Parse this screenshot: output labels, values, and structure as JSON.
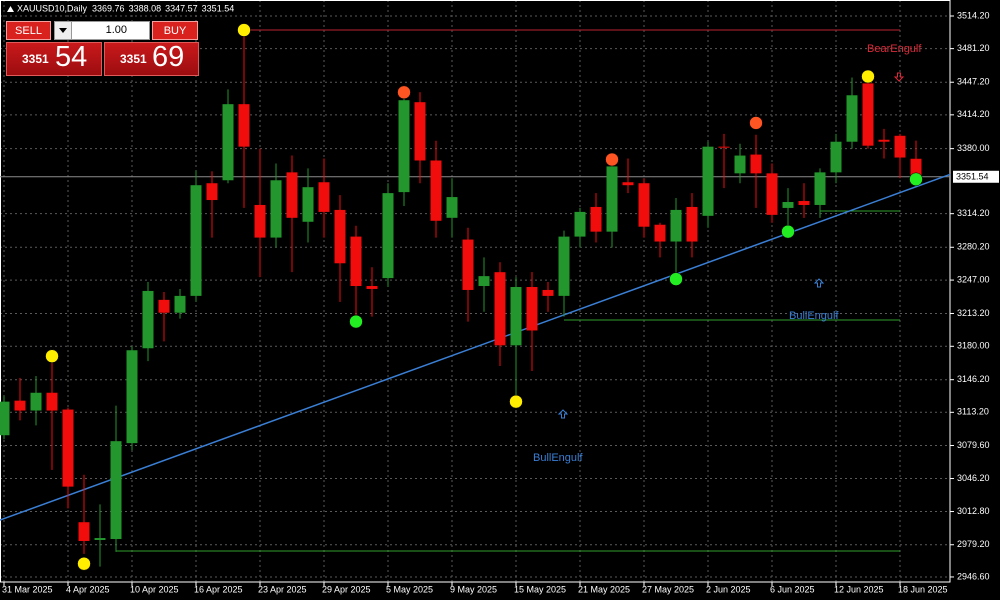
{
  "chart_data": {
    "type": "candlestick",
    "title": "XAUUSD10,Daily",
    "categories": [
      "31 Mar 2025",
      null,
      null,
      null,
      "4 Apr 2025",
      null,
      null,
      null,
      "10 Apr 2025",
      null,
      null,
      null,
      "16 Apr 2025",
      null,
      null,
      null,
      "23 Apr 2025",
      null,
      null,
      null,
      "29 Apr 2025",
      null,
      null,
      null,
      "5 May 2025",
      null,
      null,
      null,
      "9 May 2025",
      null,
      null,
      null,
      "15 May 2025",
      null,
      null,
      null,
      "21 May 2025",
      null,
      null,
      null,
      "27 May 2025",
      null,
      null,
      null,
      "2 Jun 2025",
      null,
      null,
      null,
      "6 Jun 2025",
      null,
      null,
      null,
      "12 Jun 2025",
      null,
      null,
      null,
      "18 Jun 2025",
      null
    ],
    "open": [
      3090,
      3125,
      3115,
      3133,
      3116,
      3002,
      2984,
      2985,
      3082,
      3178,
      3227,
      3214,
      3231,
      3345,
      3348,
      3425,
      3323,
      3290,
      3356,
      3306,
      3346,
      3318,
      3291,
      3241,
      3249,
      3336,
      3427,
      3368,
      3310,
      3288,
      3241,
      3255,
      3181,
      3240,
      3237,
      3231,
      3291,
      3321,
      3296,
      3346,
      3345,
      3303,
      3286,
      3321,
      3312,
      3382,
      3355,
      3374,
      3355,
      3320,
      3327,
      3323,
      3356,
      3387,
      3446,
      3389,
      3393,
      3369.76
    ],
    "high": [
      3130,
      3148,
      3150,
      3163,
      3118,
      3050,
      3020,
      3120,
      3180,
      3245,
      3235,
      3238,
      3358,
      3357,
      3440,
      3500,
      3380,
      3365,
      3373,
      3360,
      3370,
      3333,
      3302,
      3260,
      3345,
      3440,
      3437,
      3388,
      3350,
      3300,
      3270,
      3265,
      3250,
      3255,
      3245,
      3297,
      3320,
      3335,
      3372,
      3370,
      3350,
      3305,
      3330,
      3335,
      3387,
      3395,
      3385,
      3394,
      3365,
      3340,
      3345,
      3360,
      3395,
      3452,
      3453,
      3400,
      3395,
      3388.08
    ],
    "low": [
      3086,
      3105,
      3100,
      3055,
      3016,
      2970,
      2957,
      2972,
      3075,
      3165,
      3185,
      3208,
      3225,
      3290,
      3345,
      3320,
      3250,
      3280,
      3255,
      3285,
      3290,
      3225,
      3205,
      3210,
      3240,
      3322,
      3345,
      3290,
      3290,
      3205,
      3215,
      3160,
      3120,
      3155,
      3215,
      3210,
      3280,
      3285,
      3280,
      3335,
      3290,
      3270,
      3250,
      3270,
      3300,
      3340,
      3345,
      3320,
      3305,
      3300,
      3310,
      3310,
      3345,
      3380,
      3380,
      3370,
      3350,
      3347.57
    ],
    "close": [
      3124,
      3115,
      3133,
      3115,
      3038,
      2983,
      2986,
      3084,
      3176,
      3236,
      3214,
      3231,
      3343,
      3328,
      3425,
      3382,
      3290,
      3348,
      3310,
      3341,
      3316,
      3264,
      3241,
      3238,
      3335,
      3429,
      3368,
      3307,
      3331,
      3237,
      3251,
      3181,
      3240,
      3196,
      3231,
      3291,
      3316,
      3296,
      3362,
      3343,
      3301,
      3286,
      3318,
      3286,
      3382,
      3381,
      3373,
      3355,
      3313,
      3326,
      3323,
      3356,
      3387,
      3434,
      3383,
      3387,
      3371,
      3351.54
    ],
    "up_color": "#23962d",
    "down_color": "#f20d0d",
    "signals": [
      {
        "color": "#ffee00",
        "values": [
          null,
          null,
          null,
          3170,
          null,
          2960,
          null,
          null,
          null,
          null,
          null,
          null,
          null,
          null,
          null,
          3500,
          null,
          null,
          null,
          null,
          null,
          null,
          null,
          null,
          null,
          null,
          null,
          null,
          null,
          null,
          null,
          null,
          3124,
          null,
          null,
          null,
          null,
          null,
          null,
          null,
          null,
          null,
          null,
          null,
          null,
          null,
          null,
          null,
          null,
          null,
          null,
          null,
          null,
          null,
          3453,
          null,
          null,
          null
        ]
      },
      {
        "color": "#ff5522",
        "values": [
          null,
          null,
          null,
          null,
          null,
          null,
          null,
          null,
          null,
          null,
          null,
          null,
          null,
          null,
          null,
          null,
          null,
          null,
          null,
          null,
          null,
          null,
          null,
          null,
          null,
          3437,
          null,
          null,
          null,
          null,
          null,
          null,
          null,
          null,
          null,
          null,
          null,
          null,
          3369,
          null,
          null,
          null,
          null,
          null,
          null,
          null,
          null,
          3406,
          null,
          null,
          null,
          null,
          null,
          null,
          null,
          null,
          null,
          null
        ]
      },
      {
        "color": "#22ee22",
        "values": [
          null,
          null,
          null,
          null,
          null,
          null,
          null,
          null,
          null,
          null,
          null,
          null,
          null,
          null,
          null,
          null,
          null,
          null,
          null,
          null,
          null,
          null,
          3205,
          null,
          null,
          null,
          null,
          null,
          null,
          null,
          null,
          null,
          null,
          null,
          null,
          null,
          null,
          null,
          null,
          null,
          null,
          null,
          3248,
          null,
          null,
          null,
          null,
          null,
          null,
          3296,
          null,
          null,
          null,
          null,
          null,
          null,
          null,
          3349
        ]
      }
    ],
    "trendline": {
      "color": "#3a7fd5",
      "values": [
        3005.6,
        3341.4
      ]
    },
    "levels": [
      {
        "value": 3500,
        "color": "#b8232f"
      },
      {
        "value": 2972.9,
        "color": "#2e9e2e"
      },
      {
        "value": 3206.6,
        "color": "#2e9e2e"
      },
      {
        "value": 3316.9,
        "color": "#2e9e2e"
      }
    ],
    "annotations": [
      {
        "text": "BearEngulf",
        "color": "#dc2a3a"
      },
      {
        "text": "BullEngulf",
        "color": "#3a7fd5"
      },
      {
        "text": "BullEngulf",
        "color": "#3a7fd5"
      }
    ],
    "ylim": [
      2941.5,
      3530.4
    ],
    "yticks": [
      {
        "value": 2946.6,
        "label": "2946.60"
      },
      {
        "value": 2979.2,
        "label": "2979.20"
      },
      {
        "value": 3012.8,
        "label": "3012.80"
      },
      {
        "value": 3046.2,
        "label": "3046.20"
      },
      {
        "value": 3079.6,
        "label": "3079.60"
      },
      {
        "value": 3113.2,
        "label": "3113.20"
      },
      {
        "value": 3146.2,
        "label": "3146.20"
      },
      {
        "value": 3180,
        "label": "3180.00"
      },
      {
        "value": 3213.2,
        "label": "3213.20"
      },
      {
        "value": 3247,
        "label": "3247.00"
      },
      {
        "value": 3280.2,
        "label": "3280.20"
      },
      {
        "value": 3314.2,
        "label": "3314.20"
      },
      {
        "value": 3380,
        "label": "3380.00"
      },
      {
        "value": 3414.2,
        "label": "3414.20"
      },
      {
        "value": 3447.2,
        "label": "3447.20"
      },
      {
        "value": 3481.2,
        "label": "3481.20"
      },
      {
        "value": 3514.2,
        "label": "3514.20"
      }
    ],
    "grid": true
  },
  "trade_panel": {
    "sell_label": "SELL",
    "buy_label": "BUY",
    "lot": "1.00",
    "bid_big": "3351",
    "bid_small": "54",
    "ask_big": "3351",
    "ask_small": "69"
  }
}
